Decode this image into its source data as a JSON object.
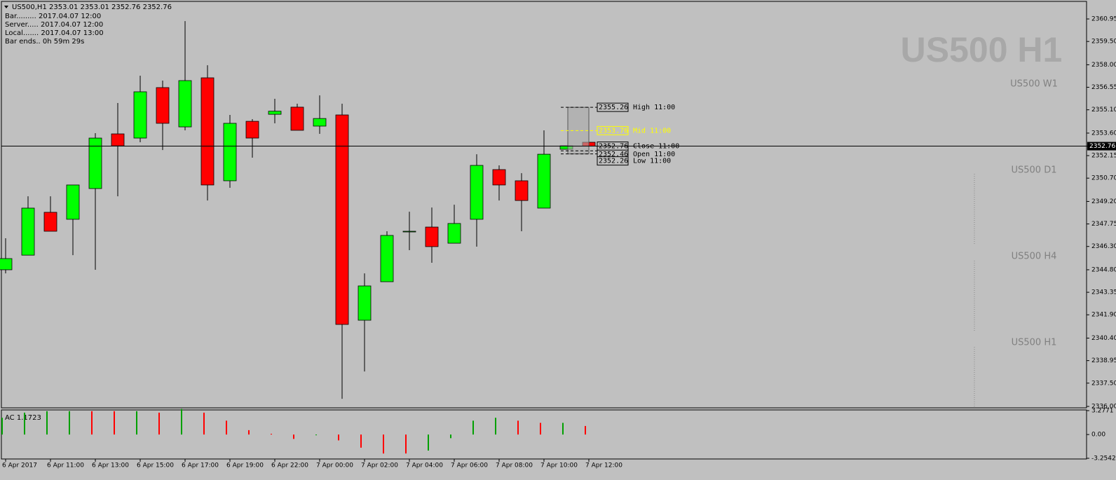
{
  "chart_data": [
    {
      "type": "candlestick",
      "title": "US500,H1  2353.01 2353.01 2352.76 2352.76",
      "categories": [
        "6 Apr 2017",
        null,
        "6 Apr 11:00",
        null,
        "6 Apr 13:00",
        null,
        "6 Apr 15:00",
        null,
        "6 Apr 17:00",
        null,
        "6 Apr 19:00",
        null,
        "6 Apr 22:00",
        null,
        "7 Apr 00:00",
        null,
        "7 Apr 02:00",
        null,
        "7 Apr 04:00",
        null,
        "7 Apr 06:00",
        null,
        "7 Apr 08:00",
        null,
        "7 Apr 10:00",
        null,
        "7 Apr 12:00"
      ],
      "open": [
        2344.8,
        2345.74,
        2348.5,
        2348.05,
        2350.03,
        2353.55,
        2353.28,
        2356.53,
        2354.0,
        2357.16,
        2350.53,
        2354.36,
        2354.81,
        2355.27,
        2354.05,
        2354.77,
        2341.55,
        2344.03,
        2347.28,
        2347.55,
        2346.51,
        2348.05,
        2351.25,
        2350.53,
        2348.77,
        2352.56,
        2353.01
      ],
      "high": [
        2346.83,
        2349.53,
        2349.53,
        2350.08,
        2353.6,
        2355.54,
        2357.3,
        2356.98,
        2360.81,
        2357.97,
        2354.77,
        2354.5,
        2355.81,
        2355.49,
        2356.03,
        2355.49,
        2344.57,
        2347.28,
        2348.54,
        2348.81,
        2348.99,
        2352.24,
        2351.52,
        2351.02,
        2353.78,
        2352.78,
        2353.01
      ],
      "low": [
        2344.57,
        2345.74,
        2347.28,
        2345.74,
        2344.8,
        2349.53,
        2353.01,
        2352.51,
        2353.78,
        2349.26,
        2350.08,
        2352.02,
        2354.23,
        2353.78,
        2353.55,
        2336.49,
        2338.25,
        2344.03,
        2346.06,
        2345.25,
        2346.51,
        2346.29,
        2349.26,
        2347.28,
        2348.77,
        2352.56,
        2352.76
      ],
      "close": [
        2345.52,
        2348.77,
        2347.28,
        2350.26,
        2353.28,
        2352.78,
        2356.26,
        2354.23,
        2356.98,
        2350.26,
        2354.23,
        2353.28,
        2355.01,
        2353.78,
        2354.54,
        2341.28,
        2343.76,
        2347.01,
        2347.28,
        2346.29,
        2347.78,
        2351.52,
        2350.26,
        2349.26,
        2352.24,
        2352.78,
        2352.76
      ],
      "up_color": "#00ff00",
      "down_color": "#ff0000",
      "ylim": [
        2335.91,
        2362.08
      ],
      "yticks": [
        {
          "value": 2360.95,
          "label": "2360.95"
        },
        {
          "value": 2359.5,
          "label": "2359.50"
        },
        {
          "value": 2358,
          "label": "2358.00"
        },
        {
          "value": 2356.55,
          "label": "2356.55"
        },
        {
          "value": 2355.1,
          "label": "2355.10"
        },
        {
          "value": 2353.6,
          "label": "2353.60"
        },
        {
          "value": 2352.15,
          "label": "2352.15"
        },
        {
          "value": 2350.7,
          "label": "2350.70"
        },
        {
          "value": 2349.2,
          "label": "2349.20"
        },
        {
          "value": 2347.75,
          "label": "2347.75"
        },
        {
          "value": 2346.3,
          "label": "2346.30"
        },
        {
          "value": 2344.8,
          "label": "2344.80"
        },
        {
          "value": 2343.35,
          "label": "2343.35"
        },
        {
          "value": 2341.9,
          "label": "2341.90"
        },
        {
          "value": 2340.4,
          "label": "2340.40"
        },
        {
          "value": 2338.95,
          "label": "2338.95"
        },
        {
          "value": 2337.5,
          "label": "2337.50"
        },
        {
          "value": 2336,
          "label": "2336.00"
        }
      ],
      "current_price": 2352.76,
      "levels": [
        {
          "value": 2355.26,
          "name": "High 11:00",
          "color": "#000000"
        },
        {
          "value": 2353.76,
          "name": "Mid 11:00",
          "color": "#ffff00"
        },
        {
          "value": 2352.76,
          "name": "Close 11:00",
          "color": "#000000"
        },
        {
          "value": 2352.46,
          "name": "Open 11:00",
          "color": "#000000"
        },
        {
          "value": 2352.26,
          "name": "Low 11:00",
          "color": "#000000"
        }
      ]
    },
    {
      "type": "bar",
      "title": "AC 1.1723",
      "values": [
        2.3,
        3.0,
        3.2,
        3.2,
        3.2,
        3.2,
        3.2,
        3.0,
        3.5,
        3.0,
        1.9,
        0.6,
        0.1,
        -0.6,
        -0.1,
        -0.8,
        -1.8,
        -2.6,
        -2.6,
        -2.2,
        -0.5,
        1.9,
        2.3,
        1.9,
        1.6,
        1.6,
        1.1723
      ],
      "colors": [
        "#00a000",
        "#00a000",
        "#00a000",
        "#00a000",
        "#ff0000",
        "#ff0000",
        "#00a000",
        "#ff0000",
        "#00a000",
        "#ff0000",
        "#ff0000",
        "#ff0000",
        "#ff0000",
        "#ff0000",
        "#00a000",
        "#ff0000",
        "#ff0000",
        "#ff0000",
        "#ff0000",
        "#00a000",
        "#00a000",
        "#00a000",
        "#00a000",
        "#ff0000",
        "#ff0000",
        "#00a000",
        "#ff0000"
      ],
      "ylim": [
        -3.2542,
        3.2771
      ],
      "yticks": [
        3.2771,
        {
          "value": 0,
          "label": "0.00"
        },
        -3.2542
      ]
    }
  ],
  "info": [
    "Bar......... 2017.04.07 12:00",
    "Server..... 2017.04.07 12:00",
    "Local....... 2017.04.07 13:00",
    "Bar ends.. 0h 59m 29s"
  ],
  "watermark": "US500 H1",
  "mini_charts": [
    "US500 W1",
    "US500 D1",
    "US500 H4",
    "US500 H1"
  ]
}
